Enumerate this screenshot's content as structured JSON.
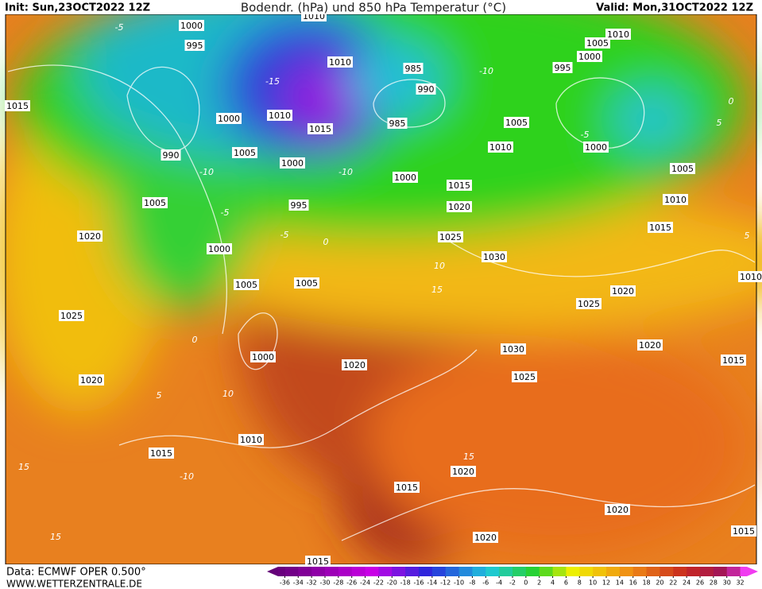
{
  "header": {
    "init": "Init: Sun,23OCT2022 12Z",
    "title": "Bodendr. (hPa) und 850 hPa Temperatur (°C)",
    "valid": "Valid: Mon,31OCT2022 12Z"
  },
  "footer": {
    "data": "Data: ECMWF OPER 0.500°",
    "site": "WWW.WETTERZENTRALE.DE"
  },
  "legend": {
    "ticks": [
      -36,
      -34,
      -32,
      -30,
      -28,
      -26,
      -24,
      -22,
      -20,
      -18,
      -16,
      -14,
      -12,
      -10,
      -8,
      -6,
      -4,
      -2,
      0,
      2,
      4,
      6,
      8,
      10,
      12,
      14,
      16,
      18,
      20,
      22,
      24,
      26,
      28,
      30,
      32
    ]
  },
  "isobar_labels": [
    1000,
    995,
    1015,
    1000,
    990,
    1005,
    1000,
    1010,
    1015,
    1010,
    1010,
    995,
    1000,
    1005,
    1020,
    1005,
    1005,
    1025,
    1020,
    1000,
    1020,
    1010,
    1015,
    985,
    990,
    985,
    1000,
    1015,
    1020,
    1025,
    1030,
    1010,
    1005,
    1000,
    995,
    1005,
    1010,
    1000,
    1005,
    1010,
    1015,
    1025,
    1020,
    1030,
    1025,
    1020,
    1015,
    1015,
    1020,
    1020,
    1020,
    1015,
    1015,
    1010
  ],
  "temperature_labels": [
    -5,
    -10,
    -5,
    0,
    -5,
    0,
    5,
    10,
    15,
    10,
    15,
    -10,
    -5,
    0,
    5,
    15,
    15,
    -10,
    -15,
    -10,
    5
  ]
}
